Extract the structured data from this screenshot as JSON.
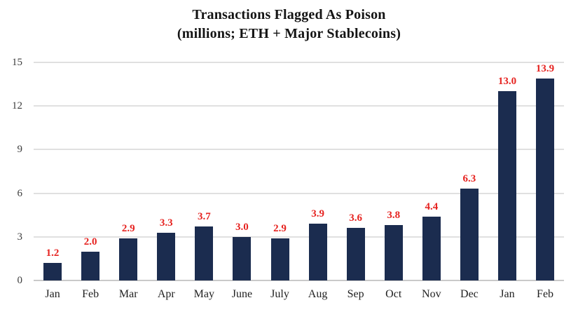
{
  "chart_data": {
    "type": "bar",
    "title": "Transactions Flagged As Poison",
    "subtitle": "(millions; ETH + Major Stablecoins)",
    "categories": [
      "Jan",
      "Feb",
      "Mar",
      "Apr",
      "May",
      "June",
      "July",
      "Aug",
      "Sep",
      "Oct",
      "Nov",
      "Dec",
      "Jan",
      "Feb"
    ],
    "values": [
      1.2,
      2.0,
      2.9,
      3.3,
      3.7,
      3.0,
      2.9,
      3.9,
      3.6,
      3.8,
      4.4,
      6.3,
      13.0,
      13.9
    ],
    "value_labels": [
      "1.2",
      "2.0",
      "2.9",
      "3.3",
      "3.7",
      "3.0",
      "2.9",
      "3.9",
      "3.6",
      "3.8",
      "4.4",
      "6.3",
      "13.0",
      "13.9"
    ],
    "xlabel": "",
    "ylabel": "",
    "ylim": [
      0,
      15
    ],
    "yticks": [
      0,
      3,
      6,
      9,
      12,
      15
    ],
    "grid": true,
    "legend": false,
    "bar_color": "#1b2c4f",
    "value_label_color": "#e62320",
    "gridline_color": "#e0e0e0",
    "axis_line_color": "#c9c9c9",
    "tick_label_color": "#3d3d3d",
    "title_color": "#141414"
  }
}
